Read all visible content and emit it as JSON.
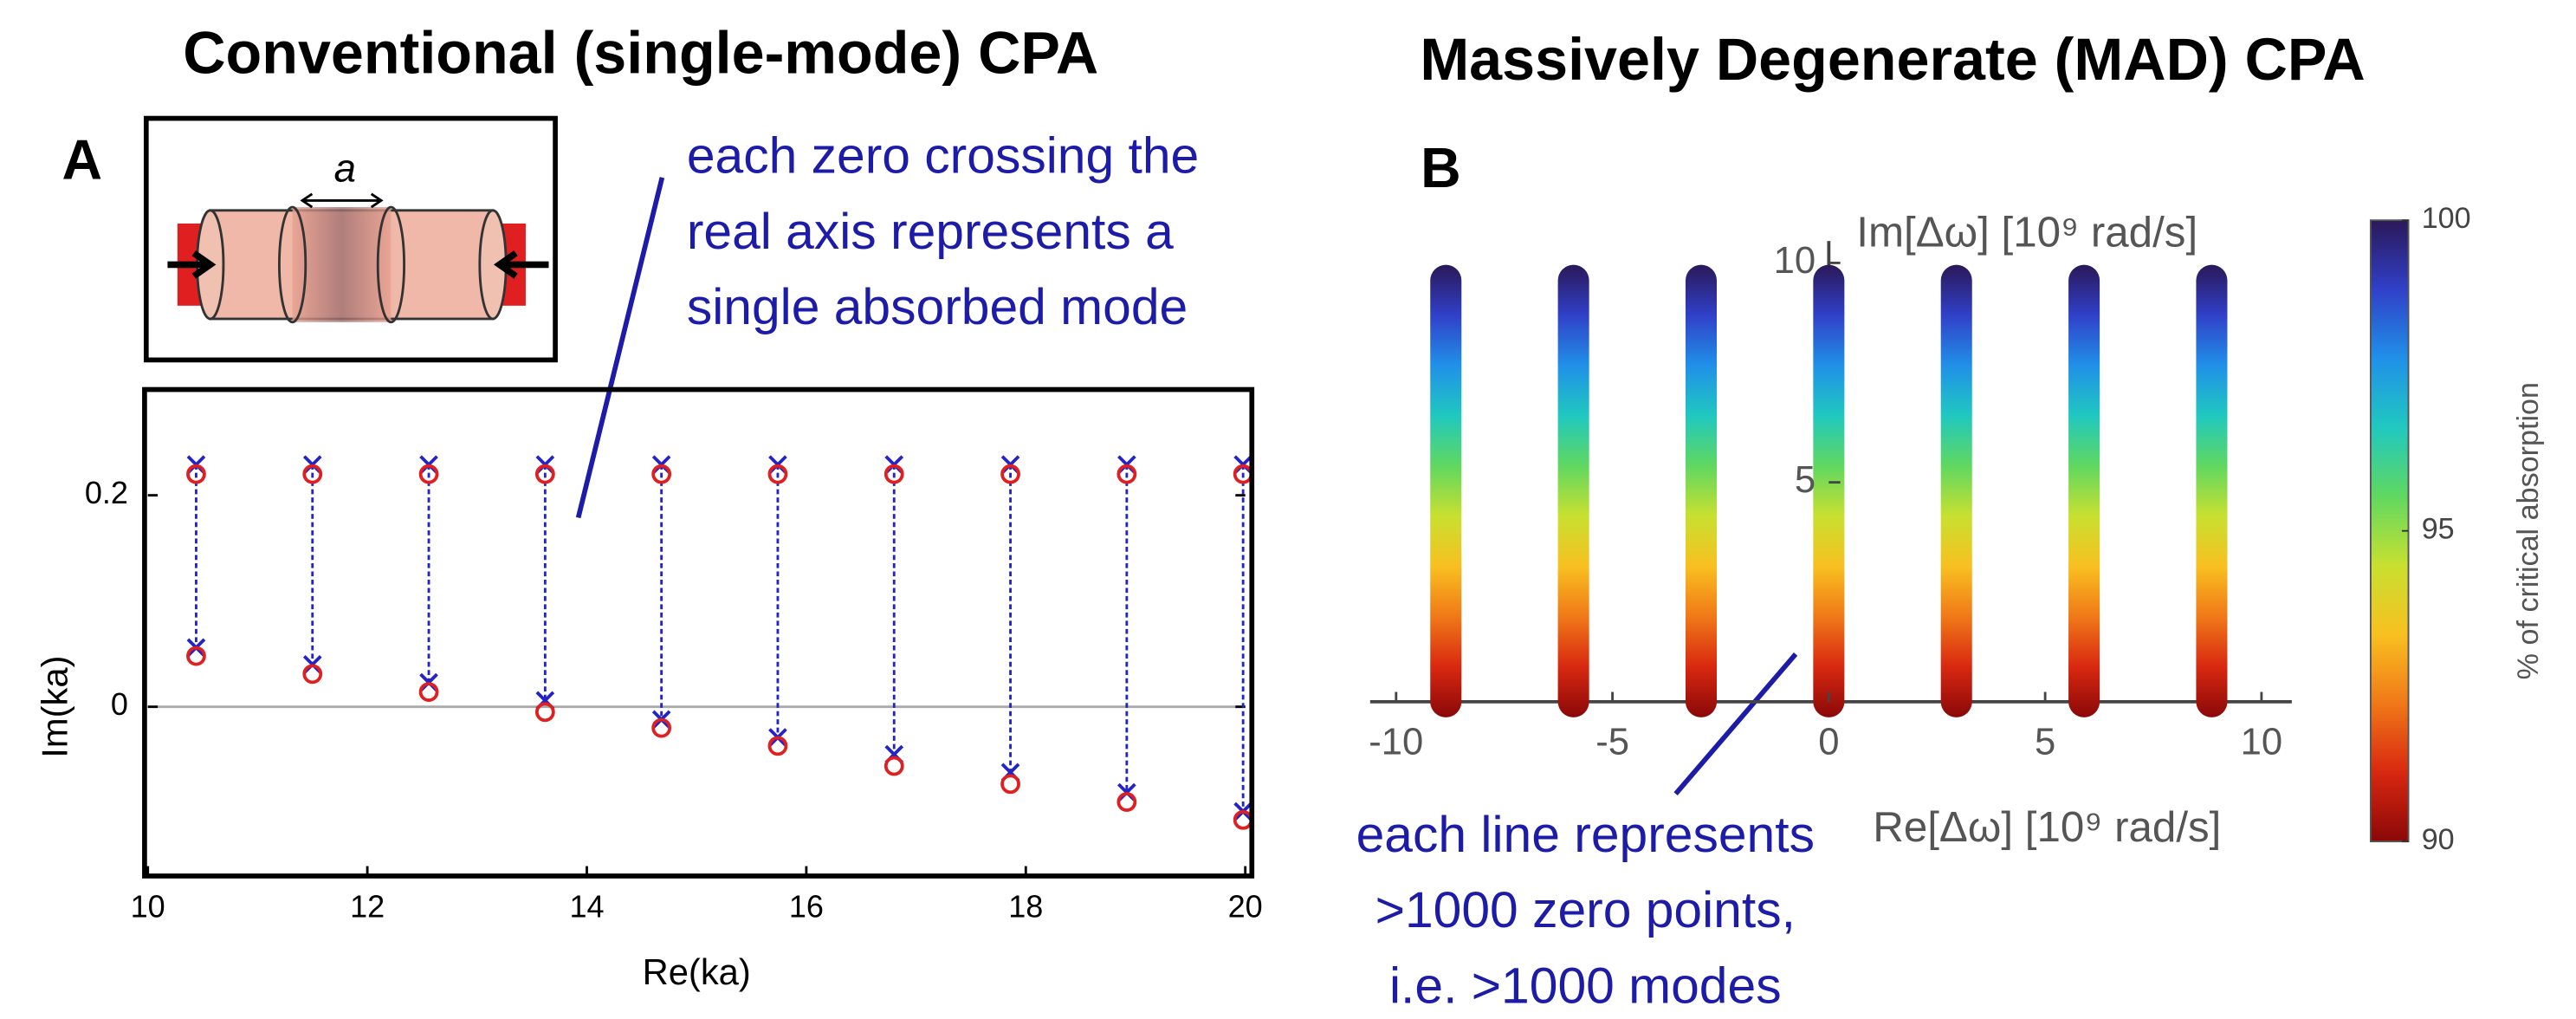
{
  "chart_data": [
    {
      "type": "scatter",
      "title": "Conventional (single-mode) CPA",
      "panel": "A",
      "inset_label": "a",
      "annotation": [
        "each zero crossing the",
        "real axis represents a",
        "single absorbed mode"
      ],
      "xlabel": "Re(ka)",
      "ylabel": "Im(ka)",
      "xlim": [
        10,
        20
      ],
      "ylim": [
        -0.16,
        0.3
      ],
      "xticks": [
        10,
        12,
        14,
        16,
        18,
        20
      ],
      "yticks": [
        0,
        0.2
      ],
      "x": [
        10.44,
        11.5,
        12.56,
        13.62,
        14.68,
        15.74,
        16.8,
        17.86,
        18.92,
        19.98
      ],
      "series": [
        {
          "marker": "x",
          "color": "#2323c8",
          "values": [
            0.229,
            0.229,
            0.229,
            0.229,
            0.229,
            0.229,
            0.229,
            0.229,
            0.229,
            0.229
          ]
        },
        {
          "marker": "x",
          "color": "#2323c8",
          "values": [
            0.056,
            0.04,
            0.023,
            0.006,
            -0.012,
            -0.029,
            -0.045,
            -0.062,
            -0.081,
            -0.099
          ]
        },
        {
          "marker": "o",
          "color": "#e02020",
          "values": [
            0.22,
            0.22,
            0.22,
            0.22,
            0.22,
            0.22,
            0.22,
            0.22,
            0.22,
            0.22
          ]
        },
        {
          "marker": "o",
          "color": "#e02020",
          "values": [
            0.048,
            0.031,
            0.014,
            -0.005,
            -0.02,
            -0.037,
            -0.056,
            -0.073,
            -0.09,
            -0.107
          ]
        }
      ]
    },
    {
      "type": "range",
      "title": "Massively Degenerate (MAD) CPA",
      "panel": "B",
      "annotation": [
        "each line represents",
        ">1000 zero points,",
        "i.e. >1000 modes"
      ],
      "xlabel": "Re[Δω] [10⁹ rad/s]",
      "ylabel": "Im[Δω] [10⁹ rad/s]",
      "xlim": [
        -10.6,
        10.7
      ],
      "ylim": [
        0,
        10.5
      ],
      "xticks": [
        -10,
        -5,
        0,
        5,
        10
      ],
      "yticks": [
        5,
        10
      ],
      "x": [
        -8.85,
        -5.9,
        -2.95,
        0,
        2.95,
        5.9,
        8.85
      ],
      "ymin": [
        0,
        0,
        0,
        0,
        0,
        0,
        0
      ],
      "ymax": [
        9.6,
        9.6,
        9.6,
        9.6,
        9.6,
        9.6,
        9.6
      ],
      "clim": [
        90,
        100
      ],
      "colorbar_ticks": [
        90,
        95,
        100
      ],
      "colorbar_label": "% of critical absorption",
      "colormap": [
        "#2b1858",
        "#3040c8",
        "#2090e8",
        "#20c8c0",
        "#60d860",
        "#c8e030",
        "#f8c020",
        "#f07818",
        "#d82810",
        "#8a0808"
      ]
    }
  ]
}
